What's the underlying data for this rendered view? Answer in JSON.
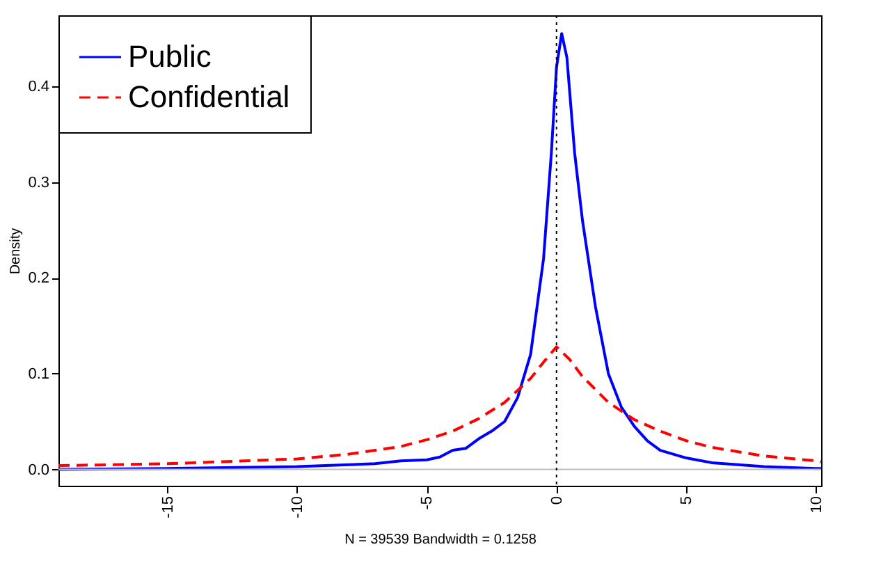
{
  "chart_data": {
    "type": "line",
    "xlabel": "N = 39539   Bandwidth = 0.1258",
    "ylabel": "Density",
    "xlim": [
      -19.2,
      10.2
    ],
    "ylim": [
      -0.017,
      0.474
    ],
    "xticks": [
      -15,
      -10,
      -5,
      0,
      5,
      10
    ],
    "yticks": [
      {
        "value": 0,
        "label": "0.0"
      },
      0.1,
      0.2,
      0.3,
      0.4
    ],
    "grid": false,
    "legend": "top left",
    "marker": "none",
    "ref_lines": [
      {
        "axis": "y",
        "value": 0,
        "color": "#bebebe",
        "line_style": "solid"
      },
      {
        "axis": "x",
        "value": 0,
        "color": "#000000",
        "line_style": "dotted"
      }
    ],
    "series": [
      {
        "name": "Public",
        "color": "#0000ff",
        "line_style": "solid",
        "x": [
          -19.2,
          -15,
          -10,
          -8,
          -7,
          -6,
          -5,
          -4.5,
          -4,
          -3.5,
          -3,
          -2.5,
          -2,
          -1.5,
          -1,
          -0.5,
          -0.2,
          0,
          0.2,
          0.4,
          0.7,
          1,
          1.5,
          2,
          2.5,
          3,
          3.5,
          4,
          5,
          6,
          8,
          10,
          10.2
        ],
        "values": [
          0,
          0.001,
          0.003,
          0.005,
          0.006,
          0.009,
          0.01,
          0.013,
          0.02,
          0.022,
          0.032,
          0.04,
          0.05,
          0.075,
          0.12,
          0.22,
          0.33,
          0.42,
          0.455,
          0.43,
          0.33,
          0.26,
          0.17,
          0.1,
          0.065,
          0.045,
          0.03,
          0.02,
          0.012,
          0.007,
          0.003,
          0.001,
          0.001
        ]
      },
      {
        "name": "Confidential",
        "color": "#ff0000",
        "line_style": "dashed",
        "x": [
          -19.2,
          -15,
          -10,
          -8,
          -6,
          -5,
          -4,
          -3,
          -2,
          -1,
          -0.5,
          0,
          0.5,
          1,
          2,
          3,
          4,
          5,
          6,
          8,
          10,
          10.2
        ],
        "values": [
          0.004,
          0.006,
          0.011,
          0.016,
          0.024,
          0.031,
          0.04,
          0.053,
          0.07,
          0.095,
          0.112,
          0.128,
          0.115,
          0.097,
          0.07,
          0.052,
          0.04,
          0.03,
          0.023,
          0.014,
          0.009,
          0.008
        ]
      }
    ]
  }
}
